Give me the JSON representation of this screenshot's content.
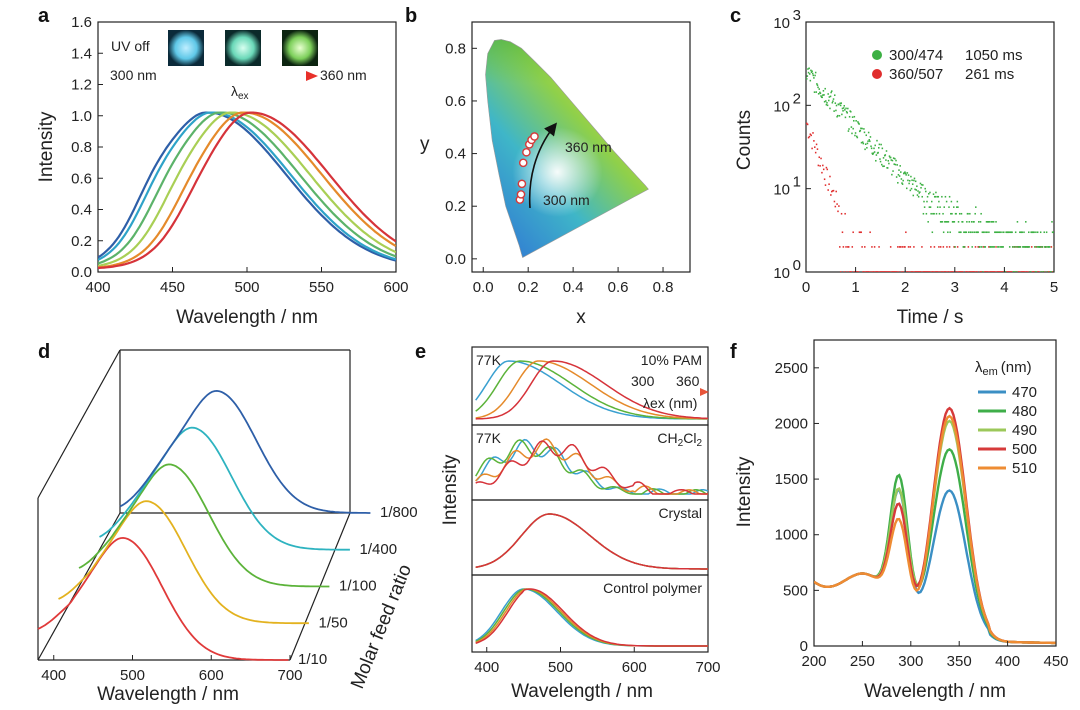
{
  "chart_data": [
    {
      "panel": "a",
      "type": "line",
      "xlabel": "Wavelength / nm",
      "ylabel": "Intensity",
      "xlim": [
        400,
        600
      ],
      "ylim": [
        0,
        1.6
      ],
      "xticks": [
        "400",
        "450",
        "500",
        "550",
        "600"
      ],
      "yticks": [
        "0.0",
        "0.2",
        "0.4",
        "0.6",
        "0.8",
        "1.0",
        "1.2",
        "1.4",
        "1.6"
      ],
      "inset": {
        "uv_label": "UV off",
        "start_label": "300 nm",
        "end_label": "360 nm",
        "arrow_label": "λ",
        "arrow_sub": "ex"
      },
      "series": [
        {
          "peak": 474,
          "color": "#2e5fa8"
        },
        {
          "peak": 477,
          "color": "#2ea3c8"
        },
        {
          "peak": 483,
          "color": "#5cb36a"
        },
        {
          "peak": 490,
          "color": "#a9cf55"
        },
        {
          "peak": 498,
          "color": "#e58a2b"
        },
        {
          "peak": 503,
          "color": "#d6333a"
        }
      ]
    },
    {
      "panel": "b",
      "type": "scatter",
      "xlabel": "x",
      "ylabel": "y",
      "xlim": [
        -0.05,
        0.92
      ],
      "ylim": [
        -0.05,
        0.9
      ],
      "xticks": [
        "0.0",
        "0.2",
        "0.4",
        "0.6",
        "0.8"
      ],
      "yticks": [
        "0.0",
        "0.2",
        "0.4",
        "0.6",
        "0.8"
      ],
      "annotations": [
        "300 nm",
        "360 nm"
      ],
      "points": [
        [
          0.163,
          0.225
        ],
        [
          0.168,
          0.245
        ],
        [
          0.172,
          0.285
        ],
        [
          0.178,
          0.365
        ],
        [
          0.192,
          0.405
        ],
        [
          0.205,
          0.435
        ],
        [
          0.215,
          0.452
        ],
        [
          0.228,
          0.465
        ]
      ]
    },
    {
      "panel": "c",
      "type": "scatter",
      "xlabel": "Time / s",
      "ylabel": "Counts",
      "xlim": [
        0,
        5
      ],
      "ylim_log": [
        1,
        1000
      ],
      "yscale": "log",
      "xticks": [
        "0",
        "1",
        "2",
        "3",
        "4",
        "5"
      ],
      "yticks": [
        "10",
        "10",
        "10",
        "10"
      ],
      "ytick_exp": [
        "0",
        "1",
        "2",
        "3"
      ],
      "series": [
        {
          "name": "300/474",
          "lifetime": "1050 ms",
          "color": "#3cb043"
        },
        {
          "name": "360/507",
          "lifetime": "261 ms",
          "color": "#e02d2d"
        }
      ]
    },
    {
      "panel": "d",
      "type": "line",
      "xlabel": "Wavelength / nm",
      "zlabel": "Molar feed ratio",
      "xticks": [
        "400",
        "500",
        "600",
        "700"
      ],
      "series": [
        {
          "name": "1/800",
          "color": "#2e5fa8",
          "peak": 505
        },
        {
          "name": "1/400",
          "color": "#2eb3c0",
          "peak": 500
        },
        {
          "name": "1/100",
          "color": "#5cb33a",
          "peak": 497
        },
        {
          "name": "1/50",
          "color": "#e3b21f",
          "peak": 494
        },
        {
          "name": "1/10",
          "color": "#e03a3a",
          "peak": 490
        }
      ]
    },
    {
      "panel": "e",
      "type": "line",
      "xlabel": "Wavelength / nm",
      "ylabel": "Intensity",
      "xlim": [
        380,
        700
      ],
      "xticks": [
        "400",
        "500",
        "600",
        "700"
      ],
      "subpanels": [
        {
          "label": "10% PAM",
          "left_label": "77K",
          "sub_label": ""
        },
        {
          "label": "CH",
          "sub1": "2",
          "mid": "Cl",
          "sub2": "2",
          "left_label": "77K"
        },
        {
          "label": "Crystal",
          "left_label": ""
        },
        {
          "label": "Control polymer",
          "left_label": ""
        }
      ],
      "inset": {
        "from": "300",
        "to": "360",
        "arrow_label": "λex (nm)"
      },
      "colors": [
        "#3aa0d0",
        "#5cb33a",
        "#e58a2b",
        "#d6333a"
      ]
    },
    {
      "panel": "f",
      "type": "line",
      "xlabel": "Wavelength / nm",
      "ylabel": "Intensity",
      "xlim": [
        200,
        450
      ],
      "ylim": [
        0,
        2750
      ],
      "xticks": [
        "200",
        "250",
        "300",
        "350",
        "400",
        "450"
      ],
      "yticks": [
        "0",
        "500",
        "1000",
        "1500",
        "2000",
        "2500"
      ],
      "legend_title": "λ",
      "legend_title_sub": "em",
      "legend_title_unit": "(nm)",
      "series": [
        {
          "name": "470",
          "color": "#3b8fc4",
          "p1": 1480,
          "p2": 1480
        },
        {
          "name": "480",
          "color": "#3fae49",
          "p1": 1660,
          "p2": 1900
        },
        {
          "name": "490",
          "color": "#9cc85a",
          "p1": 1490,
          "p2": 2190
        },
        {
          "name": "500",
          "color": "#d63a3a",
          "p1": 1300,
          "p2": 2320
        },
        {
          "name": "510",
          "color": "#ee8c33",
          "p1": 1110,
          "p2": 2240
        }
      ]
    }
  ],
  "panel_letters": [
    "a",
    "b",
    "c",
    "d",
    "e",
    "f"
  ]
}
